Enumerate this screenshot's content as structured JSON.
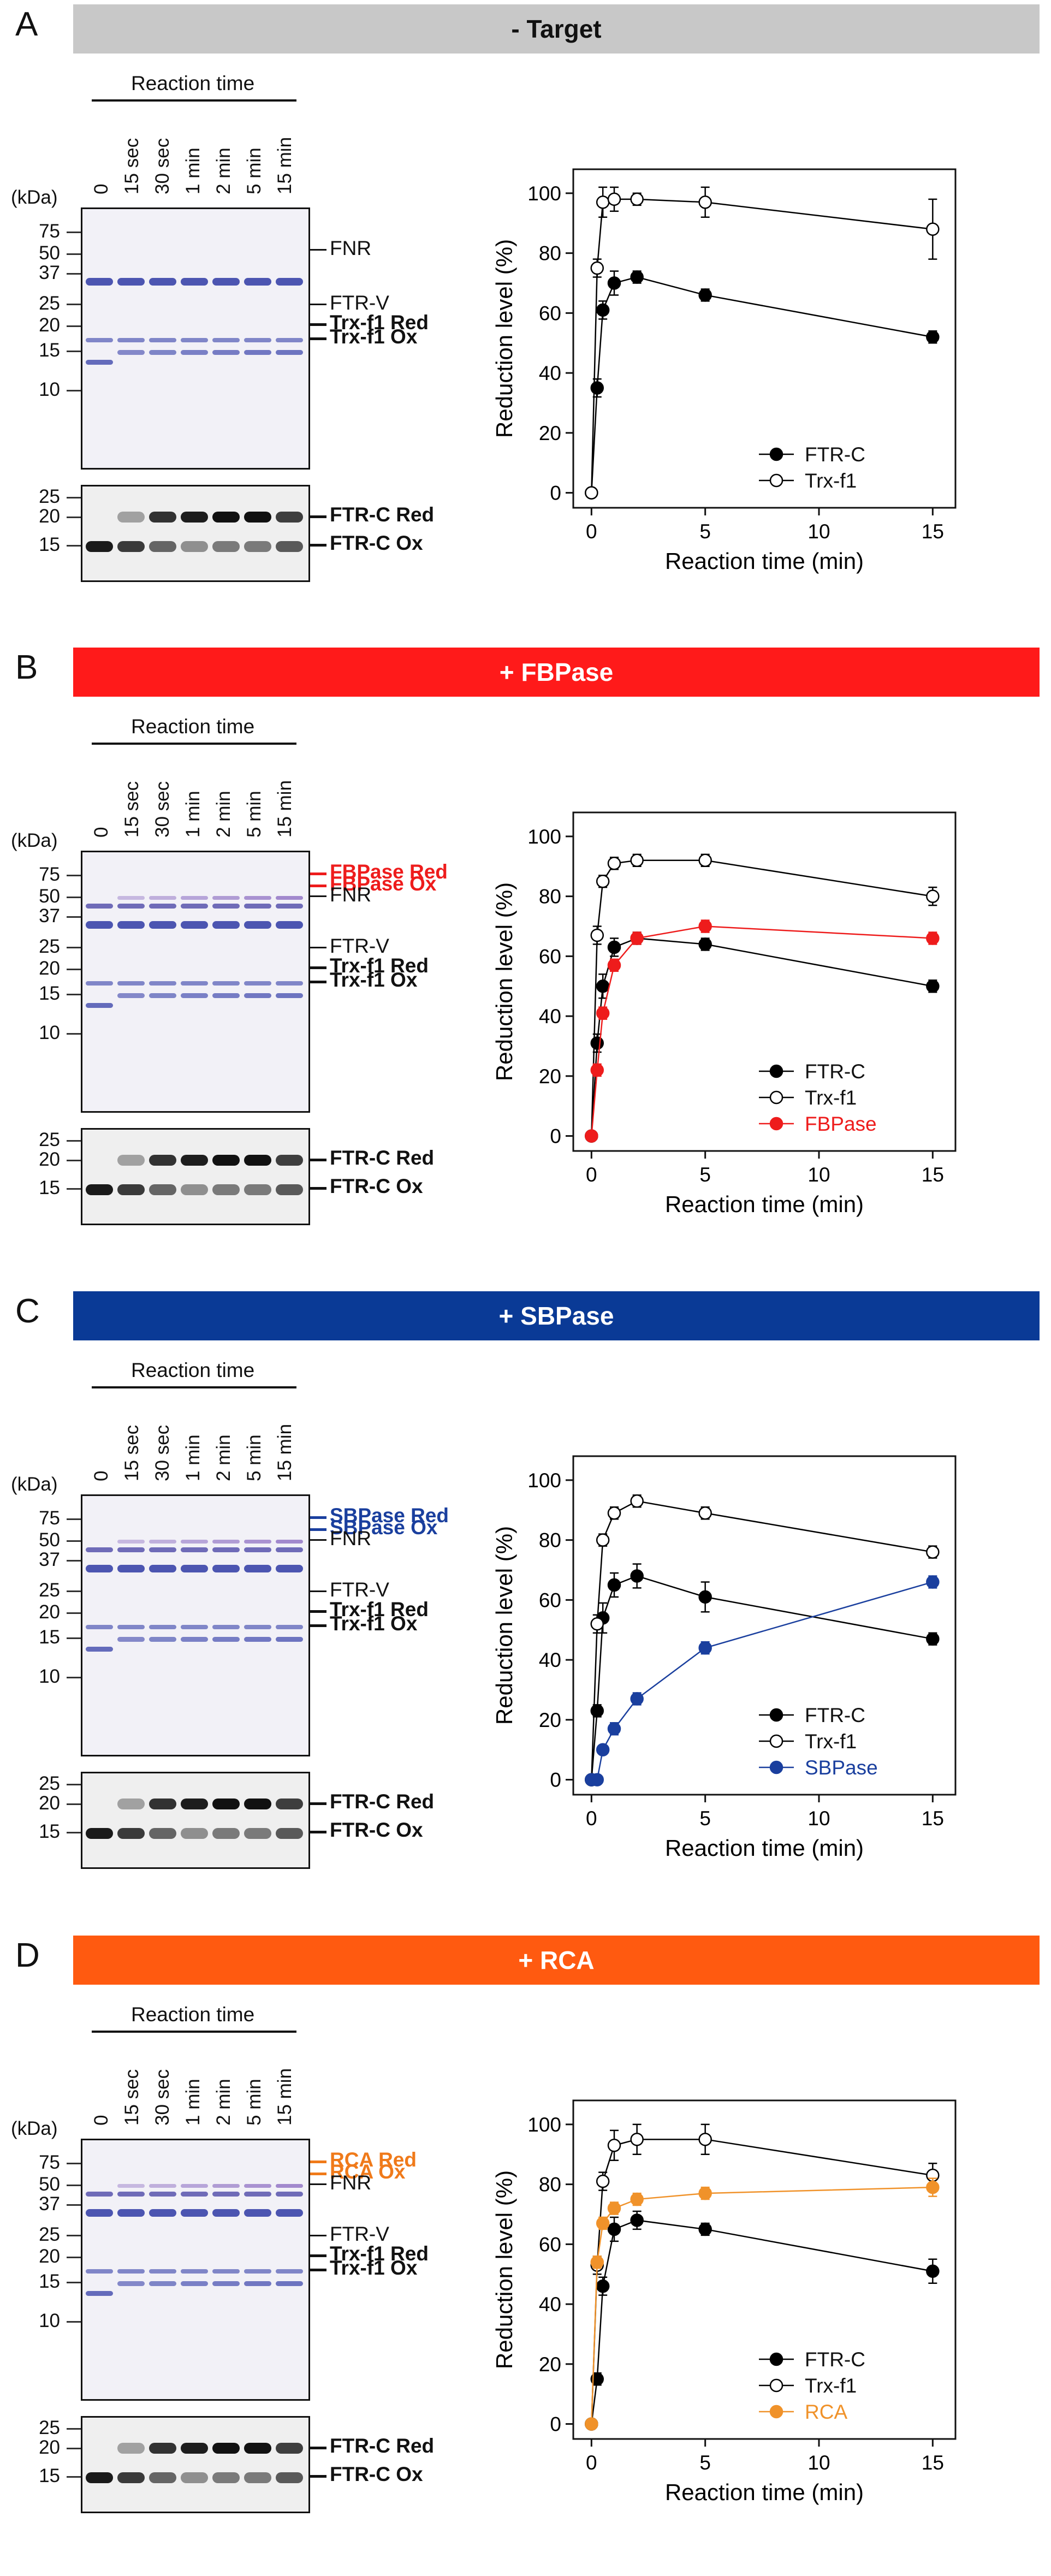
{
  "figure": {
    "panels": [
      {
        "id": "A",
        "letter": "A",
        "banner": "- Target",
        "banner_color": "#c8c8c8",
        "banner_text_color": "#111111",
        "gel": {
          "reaction_time_label": "Reaction time",
          "lanes": [
            "0",
            "15 sec",
            "30 sec",
            "1 min",
            "2 min",
            "5 min",
            "15 min"
          ],
          "kda_label": "(kDa)",
          "markers": [
            "75",
            "50",
            "37",
            "25",
            "20",
            "15",
            "10"
          ],
          "blot_markers": [
            "25",
            "20",
            "15"
          ],
          "band_labels": [
            {
              "text": "FNR",
              "bold": false,
              "color": "#111111"
            },
            {
              "text": "FTR-V",
              "bold": false,
              "color": "#111111"
            },
            {
              "text": "Trx-f1 Red",
              "bold": true,
              "color": "#111111"
            },
            {
              "text": "Trx-f1 Ox",
              "bold": true,
              "color": "#111111"
            }
          ],
          "blot_labels": [
            {
              "text": "FTR-C Red",
              "bold": true,
              "color": "#111111"
            },
            {
              "text": "FTR-C Ox",
              "bold": true,
              "color": "#111111"
            }
          ]
        }
      },
      {
        "id": "B",
        "letter": "B",
        "banner": "+ FBPase",
        "banner_color": "#ff1a1a",
        "banner_text_color": "#ffffff",
        "gel": {
          "reaction_time_label": "Reaction time",
          "lanes": [
            "0",
            "15 sec",
            "30 sec",
            "1 min",
            "2 min",
            "5 min",
            "15 min"
          ],
          "kda_label": "(kDa)",
          "markers": [
            "75",
            "50",
            "37",
            "25",
            "20",
            "15",
            "10"
          ],
          "blot_markers": [
            "25",
            "20",
            "15"
          ],
          "band_labels": [
            {
              "text": "FBPase Red",
              "bold": true,
              "color": "#ee1c1c"
            },
            {
              "text": "FBPase Ox",
              "bold": true,
              "color": "#ee1c1c"
            },
            {
              "text": "FNR",
              "bold": false,
              "color": "#111111"
            },
            {
              "text": "FTR-V",
              "bold": false,
              "color": "#111111"
            },
            {
              "text": "Trx-f1 Red",
              "bold": true,
              "color": "#111111"
            },
            {
              "text": "Trx-f1 Ox",
              "bold": true,
              "color": "#111111"
            }
          ],
          "blot_labels": [
            {
              "text": "FTR-C Red",
              "bold": true,
              "color": "#111111"
            },
            {
              "text": "FTR-C Ox",
              "bold": true,
              "color": "#111111"
            }
          ]
        }
      },
      {
        "id": "C",
        "letter": "C",
        "banner": "+ SBPase",
        "banner_color": "#0a3a96",
        "banner_text_color": "#ffffff",
        "gel": {
          "reaction_time_label": "Reaction time",
          "lanes": [
            "0",
            "15 sec",
            "30 sec",
            "1 min",
            "2 min",
            "5 min",
            "15 min"
          ],
          "kda_label": "(kDa)",
          "markers": [
            "75",
            "50",
            "37",
            "25",
            "20",
            "15",
            "10"
          ],
          "blot_markers": [
            "25",
            "20",
            "15"
          ],
          "band_labels": [
            {
              "text": "SBPase Red",
              "bold": true,
              "color": "#1a3f9e"
            },
            {
              "text": "SBPase Ox",
              "bold": true,
              "color": "#1a3f9e"
            },
            {
              "text": "FNR",
              "bold": false,
              "color": "#111111"
            },
            {
              "text": "FTR-V",
              "bold": false,
              "color": "#111111"
            },
            {
              "text": "Trx-f1 Red",
              "bold": true,
              "color": "#111111"
            },
            {
              "text": "Trx-f1 Ox",
              "bold": true,
              "color": "#111111"
            }
          ],
          "blot_labels": [
            {
              "text": "FTR-C Red",
              "bold": true,
              "color": "#111111"
            },
            {
              "text": "FTR-C Ox",
              "bold": true,
              "color": "#111111"
            }
          ]
        }
      },
      {
        "id": "D",
        "letter": "D",
        "banner": "+ RCA",
        "banner_color": "#ff5a10",
        "banner_text_color": "#ffffff",
        "gel": {
          "reaction_time_label": "Reaction time",
          "lanes": [
            "0",
            "15 sec",
            "30 sec",
            "1 min",
            "2 min",
            "5 min",
            "15 min"
          ],
          "kda_label": "(kDa)",
          "markers": [
            "75",
            "50",
            "37",
            "25",
            "20",
            "15",
            "10"
          ],
          "blot_markers": [
            "25",
            "20",
            "15"
          ],
          "band_labels": [
            {
              "text": "RCA Red",
              "bold": true,
              "color": "#f07a1a"
            },
            {
              "text": "RCA Ox",
              "bold": true,
              "color": "#f07a1a"
            },
            {
              "text": "FNR",
              "bold": false,
              "color": "#111111"
            },
            {
              "text": "FTR-V",
              "bold": false,
              "color": "#111111"
            },
            {
              "text": "Trx-f1 Red",
              "bold": true,
              "color": "#111111"
            },
            {
              "text": "Trx-f1 Ox",
              "bold": true,
              "color": "#111111"
            }
          ],
          "blot_labels": [
            {
              "text": "FTR-C Red",
              "bold": true,
              "color": "#111111"
            },
            {
              "text": "FTR-C Ox",
              "bold": true,
              "color": "#111111"
            }
          ]
        }
      }
    ]
  },
  "chart_data": [
    {
      "panel": "A",
      "type": "line",
      "xlabel": "Reaction time (min)",
      "ylabel": "Reduction level (%)",
      "xlim": [
        -0.8,
        16
      ],
      "ylim": [
        -5,
        108
      ],
      "xticks": [
        0,
        5,
        10,
        15
      ],
      "yticks": [
        0,
        20,
        40,
        60,
        80,
        100
      ],
      "legend_position": "lower-right",
      "x": [
        0,
        0.25,
        0.5,
        1,
        2,
        5,
        15
      ],
      "series": [
        {
          "name": "FTR-C",
          "marker": "filled",
          "color": "#000000",
          "values": [
            0,
            35,
            61,
            70,
            72,
            66,
            52
          ],
          "errors": [
            0,
            3,
            3,
            4,
            2,
            2,
            2
          ]
        },
        {
          "name": "Trx-f1",
          "marker": "open",
          "color": "#000000",
          "values": [
            0,
            75,
            97,
            98,
            98,
            97,
            88
          ],
          "errors": [
            0,
            3,
            5,
            4,
            2,
            5,
            10
          ]
        }
      ]
    },
    {
      "panel": "B",
      "type": "line",
      "xlabel": "Reaction time (min)",
      "ylabel": "Reduction level (%)",
      "xlim": [
        -0.8,
        16
      ],
      "ylim": [
        -5,
        108
      ],
      "xticks": [
        0,
        5,
        10,
        15
      ],
      "yticks": [
        0,
        20,
        40,
        60,
        80,
        100
      ],
      "legend_position": "lower-right",
      "x": [
        0,
        0.25,
        0.5,
        1,
        2,
        5,
        15
      ],
      "series": [
        {
          "name": "FTR-C",
          "marker": "filled",
          "color": "#000000",
          "values": [
            0,
            31,
            50,
            63,
            66,
            64,
            50
          ],
          "errors": [
            0,
            3,
            4,
            3,
            2,
            2,
            2
          ]
        },
        {
          "name": "Trx-f1",
          "marker": "open",
          "color": "#000000",
          "values": [
            0,
            67,
            85,
            91,
            92,
            92,
            80
          ],
          "errors": [
            0,
            3,
            2,
            2,
            2,
            2,
            3
          ]
        },
        {
          "name": "FBPase",
          "marker": "filled",
          "color": "#ee1c1c",
          "values": [
            0,
            22,
            41,
            57,
            66,
            70,
            66
          ],
          "errors": [
            0,
            2,
            2,
            2,
            2,
            2,
            2
          ]
        }
      ]
    },
    {
      "panel": "C",
      "type": "line",
      "xlabel": "Reaction time (min)",
      "ylabel": "Reduction level (%)",
      "xlim": [
        -0.8,
        16
      ],
      "ylim": [
        -5,
        108
      ],
      "xticks": [
        0,
        5,
        10,
        15
      ],
      "yticks": [
        0,
        20,
        40,
        60,
        80,
        100
      ],
      "legend_position": "lower-right",
      "x": [
        0,
        0.25,
        0.5,
        1,
        2,
        5,
        15
      ],
      "series": [
        {
          "name": "FTR-C",
          "marker": "filled",
          "color": "#000000",
          "values": [
            0,
            23,
            54,
            65,
            68,
            61,
            47
          ],
          "errors": [
            0,
            2,
            5,
            4,
            4,
            5,
            2
          ]
        },
        {
          "name": "Trx-f1",
          "marker": "open",
          "color": "#000000",
          "values": [
            0,
            52,
            80,
            89,
            93,
            89,
            76
          ],
          "errors": [
            0,
            3,
            2,
            2,
            2,
            2,
            2
          ]
        },
        {
          "name": "SBPase",
          "marker": "filled",
          "color": "#1a3f9e",
          "values": [
            0,
            0,
            10,
            17,
            27,
            44,
            66
          ],
          "errors": [
            0,
            1,
            1,
            2,
            2,
            2,
            2
          ]
        }
      ]
    },
    {
      "panel": "D",
      "type": "line",
      "xlabel": "Reaction time (min)",
      "ylabel": "Reduction level (%)",
      "xlim": [
        -0.8,
        16
      ],
      "ylim": [
        -5,
        108
      ],
      "xticks": [
        0,
        5,
        10,
        15
      ],
      "yticks": [
        0,
        20,
        40,
        60,
        80,
        100
      ],
      "legend_position": "lower-right",
      "x": [
        0,
        0.25,
        0.5,
        1,
        2,
        5,
        15
      ],
      "series": [
        {
          "name": "FTR-C",
          "marker": "filled",
          "color": "#000000",
          "values": [
            0,
            15,
            46,
            65,
            68,
            65,
            51
          ],
          "errors": [
            0,
            2,
            3,
            4,
            3,
            2,
            4
          ]
        },
        {
          "name": "Trx-f1",
          "marker": "open",
          "color": "#000000",
          "values": [
            0,
            53,
            81,
            93,
            95,
            95,
            83
          ],
          "errors": [
            0,
            3,
            3,
            5,
            5,
            5,
            4
          ]
        },
        {
          "name": "RCA",
          "marker": "filled",
          "color": "#f0922a",
          "values": [
            0,
            54,
            67,
            72,
            75,
            77,
            79
          ],
          "errors": [
            0,
            2,
            2,
            2,
            2,
            2,
            3
          ]
        }
      ]
    }
  ]
}
